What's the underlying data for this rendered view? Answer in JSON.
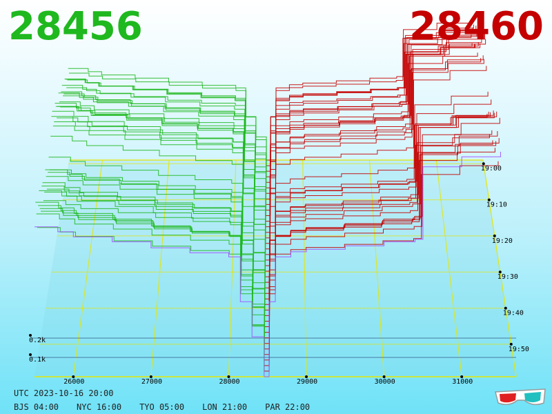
{
  "header": {
    "bid_price": "28456",
    "ask_price": "28460"
  },
  "footer": {
    "utc": "UTC 2023-10-16 20:00",
    "zones": [
      "BJS 04:00",
      "NYC 16:00",
      "TYO 05:00",
      "LON 21:00",
      "PAR 22:00"
    ]
  },
  "icons": {
    "glasses": "3d-glasses-icon"
  },
  "colors": {
    "bid": "#1fb81f",
    "ask": "#c40000",
    "grid": "#e6e600",
    "latest": "#a050ff"
  },
  "chart_data": {
    "type": "3d-depth-surface",
    "title": "",
    "xlabel": "",
    "ylabel": "",
    "price_ticks": [
      26000,
      27000,
      28000,
      29000,
      30000,
      31000
    ],
    "time_ticks": [
      "19:00",
      "19:10",
      "19:20",
      "19:30",
      "19:40",
      "19:50"
    ],
    "volume_ticks": [
      "0.1k",
      "0.2k"
    ],
    "xlim": [
      25500,
      31700
    ],
    "series": [
      {
        "name": "",
        "side": "bid",
        "price": [
          25500,
          25800,
          26000,
          26500,
          27000,
          27500,
          28000,
          28150,
          28300,
          28456
        ],
        "volume": [
          300,
          290,
          280,
          270,
          258,
          248,
          240,
          150,
          80,
          0
        ]
      },
      {
        "name": "",
        "side": "ask",
        "price": [
          28460,
          28520,
          28600,
          28800,
          29000,
          29500,
          30000,
          30400,
          30500,
          31000,
          31500
        ],
        "volume": [
          0,
          150,
          240,
          250,
          255,
          262,
          270,
          275,
          420,
          440,
          450
        ]
      }
    ]
  }
}
